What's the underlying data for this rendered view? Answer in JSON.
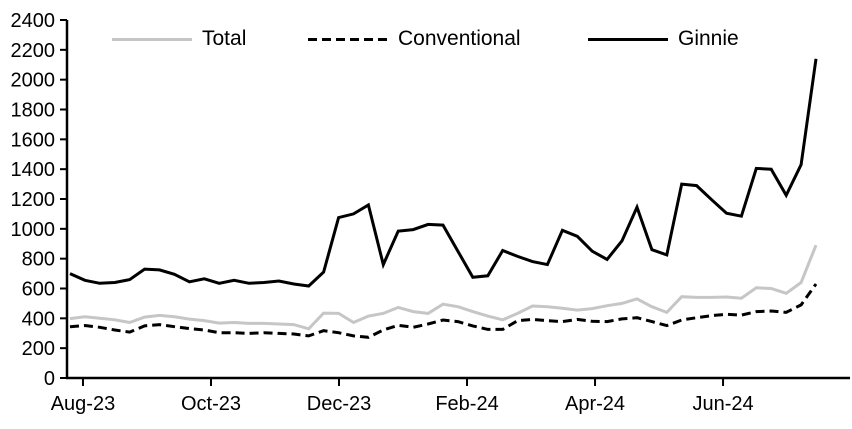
{
  "chart_data": {
    "type": "line",
    "title": "",
    "xlabel": "",
    "ylabel": "",
    "ylim": [
      0,
      2400
    ],
    "y_ticks": [
      0,
      200,
      400,
      600,
      800,
      1000,
      1200,
      1400,
      1600,
      1800,
      2000,
      2200,
      2400
    ],
    "x_tick_labels": [
      "Aug-23",
      "Oct-23",
      "Dec-23",
      "Feb-24",
      "Apr-24",
      "Jun-24"
    ],
    "x_tick_week_positions": [
      0.87,
      9.45,
      18.03,
      26.61,
      35.19,
      43.77
    ],
    "frequency": "weekly",
    "grid": false,
    "legend_position": "top-inside",
    "series": [
      {
        "name": "Total",
        "color": "#c6c6c6",
        "dash": "solid",
        "values": [
          398,
          410,
          400,
          390,
          372,
          408,
          420,
          410,
          395,
          385,
          368,
          372,
          366,
          366,
          362,
          358,
          330,
          435,
          433,
          372,
          415,
          433,
          473,
          445,
          433,
          495,
          478,
          445,
          415,
          390,
          433,
          483,
          478,
          467,
          455,
          465,
          485,
          500,
          530,
          478,
          440,
          545,
          540,
          540,
          543,
          535,
          605,
          600,
          568,
          640,
          890
        ]
      },
      {
        "name": "Conventional",
        "color": "#000000",
        "dash": "dashed",
        "values": [
          344,
          352,
          340,
          322,
          308,
          349,
          358,
          344,
          331,
          322,
          304,
          304,
          299,
          304,
          299,
          295,
          282,
          317,
          304,
          282,
          273,
          322,
          353,
          340,
          362,
          389,
          378,
          349,
          326,
          326,
          384,
          393,
          384,
          378,
          393,
          380,
          378,
          396,
          404,
          378,
          351,
          389,
          404,
          418,
          427,
          422,
          445,
          449,
          440,
          490,
          630
        ]
      },
      {
        "name": "Ginnie",
        "color": "#000000",
        "dash": "solid",
        "values": [
          700,
          655,
          635,
          640,
          660,
          730,
          725,
          695,
          645,
          665,
          635,
          655,
          635,
          640,
          650,
          630,
          617,
          710,
          1075,
          1100,
          1160,
          760,
          985,
          995,
          1030,
          1025,
          850,
          675,
          685,
          855,
          815,
          780,
          760,
          990,
          950,
          850,
          795,
          920,
          1145,
          860,
          825,
          1300,
          1290,
          1195,
          1105,
          1085,
          1405,
          1400,
          1225,
          1430,
          2140
        ]
      }
    ]
  }
}
